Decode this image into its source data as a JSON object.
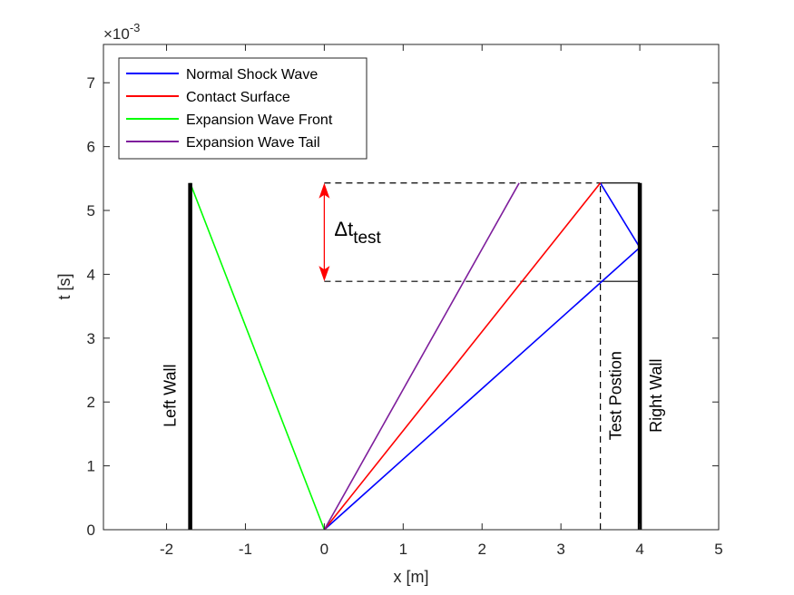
{
  "chart_data": {
    "type": "line",
    "xlabel": "x [m]",
    "ylabel": "t [s]",
    "exponent_label_base": "×10",
    "exponent_label_power": "-3",
    "xlim": [
      -2.8,
      5
    ],
    "ylim": [
      0,
      7.6
    ],
    "xticks": [
      -2,
      -1,
      0,
      1,
      2,
      3,
      4,
      5
    ],
    "yticks": [
      0,
      1,
      2,
      3,
      4,
      5,
      6,
      7
    ],
    "xtick_labels": [
      "-2",
      "-1",
      "0",
      "1",
      "2",
      "3",
      "4",
      "5"
    ],
    "ytick_labels": [
      "0",
      "1",
      "2",
      "3",
      "4",
      "5",
      "6",
      "7"
    ],
    "legend_placement": "top-left",
    "grid": false,
    "series": [
      {
        "name": "Normal Shock Wave",
        "color": "#0000ff",
        "points": [
          [
            0,
            0
          ],
          [
            4,
            4.42
          ],
          [
            3.5,
            5.43
          ]
        ]
      },
      {
        "name": "Contact Surface",
        "color": "#ff0000",
        "points": [
          [
            0,
            0
          ],
          [
            3.5,
            5.43
          ]
        ]
      },
      {
        "name": "Expansion Wave Front",
        "color": "#00ff00",
        "points": [
          [
            0,
            0
          ],
          [
            -1.7,
            5.43
          ]
        ]
      },
      {
        "name": "Expansion Wave Tail",
        "color": "#7e1e9c",
        "points": [
          [
            0,
            0
          ],
          [
            2.47,
            5.43
          ]
        ]
      }
    ],
    "walls": [
      {
        "label": "Left Wall",
        "x": -1.7,
        "t_end": 5.43
      },
      {
        "label": "Right Wall",
        "x": 4,
        "t_end": 5.43
      }
    ],
    "test_position": {
      "label": "Test Postion",
      "x": 3.5,
      "t_end": 5.43
    },
    "test_window": {
      "t_start": 3.89,
      "t_end": 5.43,
      "x_arrow": 0,
      "x_right": 4,
      "label_main": "Δt",
      "label_sub": "test",
      "arrow_color": "#ff0000"
    }
  }
}
